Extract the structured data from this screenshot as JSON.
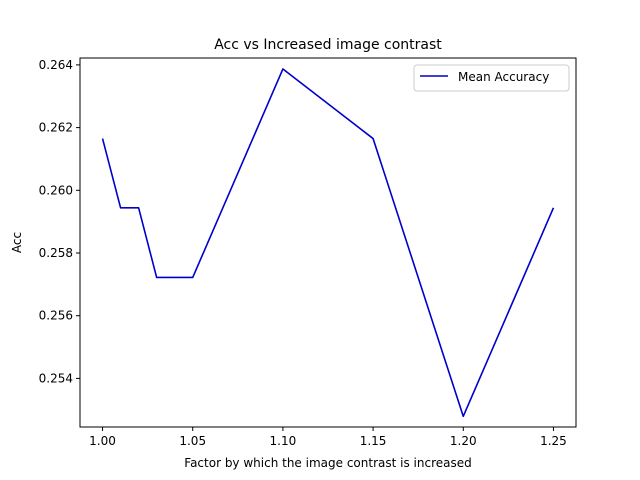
{
  "chart_data": {
    "type": "line",
    "title": "Acc vs Increased image contrast",
    "xlabel": "Factor by which the image contrast is increased",
    "ylabel": "Acc",
    "x": [
      1.0,
      1.01,
      1.02,
      1.03,
      1.05,
      1.1,
      1.15,
      1.2,
      1.25
    ],
    "series": [
      {
        "name": "Mean Accuracy",
        "color": "#0000cc",
        "values": [
          0.26165,
          0.25944,
          0.25944,
          0.25722,
          0.25722,
          0.26387,
          0.26165,
          0.25279,
          0.25944
        ]
      }
    ],
    "xlim": [
      0.9875,
      1.2625
    ],
    "ylim": [
      0.25245,
      0.26422
    ],
    "xticks": [
      1.0,
      1.05,
      1.1,
      1.15,
      1.2,
      1.25
    ],
    "xtick_labels": [
      "1.00",
      "1.05",
      "1.10",
      "1.15",
      "1.20",
      "1.25"
    ],
    "yticks": [
      0.254,
      0.256,
      0.258,
      0.26,
      0.262,
      0.264
    ],
    "ytick_labels": [
      "0.254",
      "0.256",
      "0.258",
      "0.260",
      "0.262",
      "0.264"
    ],
    "grid": false,
    "legend": "upper right"
  }
}
